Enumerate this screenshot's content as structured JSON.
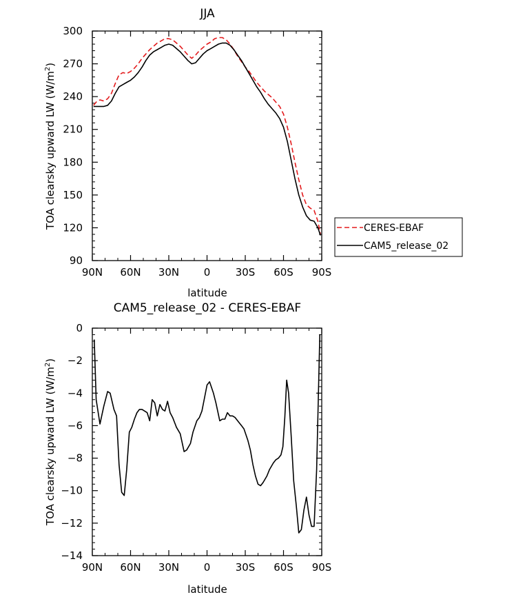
{
  "chart_data": [
    {
      "type": "line",
      "title": "JJA",
      "xlabel": "latitude",
      "ylabel": "TOA clearsky upward LW (W/m",
      "ylabel_sup": "2",
      "ylabel_close": ")",
      "xlim": [
        90,
        -90
      ],
      "ylim": [
        90,
        300
      ],
      "x_ticks": [
        {
          "v": 90,
          "label": "90N"
        },
        {
          "v": 60,
          "label": "60N"
        },
        {
          "v": 30,
          "label": "30N"
        },
        {
          "v": 0,
          "label": "0"
        },
        {
          "v": -30,
          "label": "30S"
        },
        {
          "v": -60,
          "label": "60S"
        },
        {
          "v": -90,
          "label": "90S"
        }
      ],
      "y_ticks": [
        {
          "v": 90,
          "label": "90"
        },
        {
          "v": 120,
          "label": "120"
        },
        {
          "v": 150,
          "label": "150"
        },
        {
          "v": 180,
          "label": "180"
        },
        {
          "v": 210,
          "label": "210"
        },
        {
          "v": 240,
          "label": "240"
        },
        {
          "v": 270,
          "label": "270"
        },
        {
          "v": 300,
          "label": "300"
        }
      ],
      "legend": {
        "position": "right"
      },
      "series": [
        {
          "name": "CERES-EBAF",
          "color": "#e31a1c",
          "dash": "dashed",
          "x": [
            89,
            87,
            84,
            81,
            78,
            75,
            72,
            69,
            66,
            63,
            60,
            57,
            54,
            51,
            48,
            45,
            42,
            39,
            36,
            33,
            30,
            27,
            24,
            21,
            18,
            15,
            12,
            9,
            6,
            3,
            0,
            -3,
            -6,
            -9,
            -12,
            -15,
            -18,
            -21,
            -24,
            -27,
            -30,
            -33,
            -36,
            -39,
            -42,
            -45,
            -48,
            -51,
            -54,
            -57,
            -60,
            -63,
            -66,
            -69,
            -72,
            -75,
            -78,
            -81,
            -84,
            -87,
            -89
          ],
          "y": [
            232,
            235,
            237,
            236,
            238,
            243,
            252,
            260,
            262,
            261,
            263,
            266,
            270,
            275,
            279,
            283,
            286,
            289,
            291,
            293,
            293,
            292,
            289,
            286,
            282,
            278,
            275,
            278,
            282,
            285,
            288,
            290,
            293,
            294,
            294,
            292,
            288,
            283,
            277,
            272,
            267,
            263,
            258,
            253,
            249,
            245,
            242,
            239,
            235,
            231,
            224,
            212,
            197,
            180,
            164,
            150,
            141,
            138,
            136,
            126,
            114
          ]
        },
        {
          "name": "CAM5_release_02",
          "color": "#000000",
          "dash": "solid",
          "x": [
            89,
            87,
            84,
            81,
            78,
            75,
            72,
            69,
            66,
            63,
            60,
            57,
            54,
            51,
            48,
            45,
            42,
            39,
            36,
            33,
            30,
            27,
            24,
            21,
            18,
            15,
            12,
            9,
            6,
            3,
            0,
            -3,
            -6,
            -9,
            -12,
            -15,
            -18,
            -21,
            -24,
            -27,
            -30,
            -33,
            -36,
            -39,
            -42,
            -45,
            -48,
            -51,
            -54,
            -57,
            -60,
            -63,
            -66,
            -69,
            -72,
            -75,
            -78,
            -81,
            -84,
            -87,
            -89
          ],
          "y": [
            231,
            231,
            231,
            231,
            232,
            236,
            243,
            249,
            251,
            253,
            255,
            258,
            262,
            267,
            273,
            278,
            281,
            283,
            285,
            287,
            288,
            287,
            284,
            281,
            277,
            273,
            270,
            271,
            275,
            279,
            282,
            284,
            286,
            288,
            289,
            289,
            287,
            283,
            278,
            273,
            267,
            261,
            255,
            249,
            244,
            238,
            233,
            229,
            225,
            220,
            212,
            199,
            182,
            165,
            150,
            139,
            131,
            127,
            126,
            120,
            113
          ]
        }
      ]
    },
    {
      "type": "line",
      "title": "CAM5_release_02 - CERES-EBAF",
      "xlabel": "latitude",
      "ylabel": "TOA clearsky upward LW (W/m",
      "ylabel_sup": "2",
      "ylabel_close": ")",
      "xlim": [
        90,
        -90
      ],
      "ylim": [
        -14,
        0
      ],
      "x_ticks": [
        {
          "v": 90,
          "label": "90N"
        },
        {
          "v": 60,
          "label": "60N"
        },
        {
          "v": 30,
          "label": "30N"
        },
        {
          "v": 0,
          "label": "0"
        },
        {
          "v": -30,
          "label": "30S"
        },
        {
          "v": -60,
          "label": "60S"
        },
        {
          "v": -90,
          "label": "90S"
        }
      ],
      "y_ticks": [
        {
          "v": 0,
          "label": "0"
        },
        {
          "v": -2,
          "label": "−2"
        },
        {
          "v": -4,
          "label": "−4"
        },
        {
          "v": -6,
          "label": "−6"
        },
        {
          "v": -8,
          "label": "−8"
        },
        {
          "v": -10,
          "label": "−10"
        },
        {
          "v": -12,
          "label": "−12"
        },
        {
          "v": -14,
          "label": "−14"
        }
      ],
      "series": [
        {
          "name": "CAM5_release_02 - CERES-EBAF",
          "color": "#000000",
          "dash": "solid",
          "x": [
            88.5,
            87,
            84,
            81,
            78,
            76,
            73,
            71,
            69,
            67,
            65,
            63,
            61,
            59,
            57,
            55,
            53,
            51,
            49,
            47,
            45,
            43,
            41,
            39,
            37,
            35,
            33,
            31,
            29,
            27,
            24,
            21,
            18,
            16,
            13,
            11,
            8,
            6,
            4,
            2,
            0,
            -2,
            -5,
            -7,
            -10,
            -12,
            -14,
            -16,
            -18,
            -20,
            -22,
            -25,
            -27,
            -29,
            -32,
            -34,
            -36,
            -38,
            -40,
            -42,
            -44,
            -47,
            -49,
            -52,
            -54,
            -56,
            -58,
            -59.5,
            -61,
            -62.5,
            -64,
            -66,
            -68,
            -70,
            -72,
            -74,
            -76,
            -78,
            -80,
            -82,
            -84,
            -86,
            -88.5
          ],
          "y": [
            -0.7,
            -4.4,
            -5.9,
            -4.8,
            -3.9,
            -4.0,
            -5.0,
            -5.4,
            -8.4,
            -10.1,
            -10.3,
            -8.7,
            -6.4,
            -6.1,
            -5.6,
            -5.2,
            -5.0,
            -5.0,
            -5.1,
            -5.2,
            -5.7,
            -4.4,
            -4.6,
            -5.4,
            -4.7,
            -5.0,
            -5.1,
            -4.5,
            -5.2,
            -5.5,
            -6.1,
            -6.5,
            -7.6,
            -7.5,
            -7.1,
            -6.4,
            -5.7,
            -5.5,
            -5.1,
            -4.3,
            -3.5,
            -3.3,
            -4.0,
            -4.6,
            -5.7,
            -5.6,
            -5.6,
            -5.2,
            -5.4,
            -5.4,
            -5.5,
            -5.8,
            -6.0,
            -6.2,
            -6.9,
            -7.5,
            -8.4,
            -9.1,
            -9.6,
            -9.7,
            -9.5,
            -9.1,
            -8.7,
            -8.3,
            -8.1,
            -8.0,
            -7.8,
            -7.3,
            -5.5,
            -3.2,
            -4.0,
            -6.6,
            -9.4,
            -10.9,
            -12.6,
            -12.4,
            -11.2,
            -10.4,
            -11.5,
            -12.2,
            -12.2,
            -8.7,
            -0.4
          ]
        }
      ]
    }
  ]
}
